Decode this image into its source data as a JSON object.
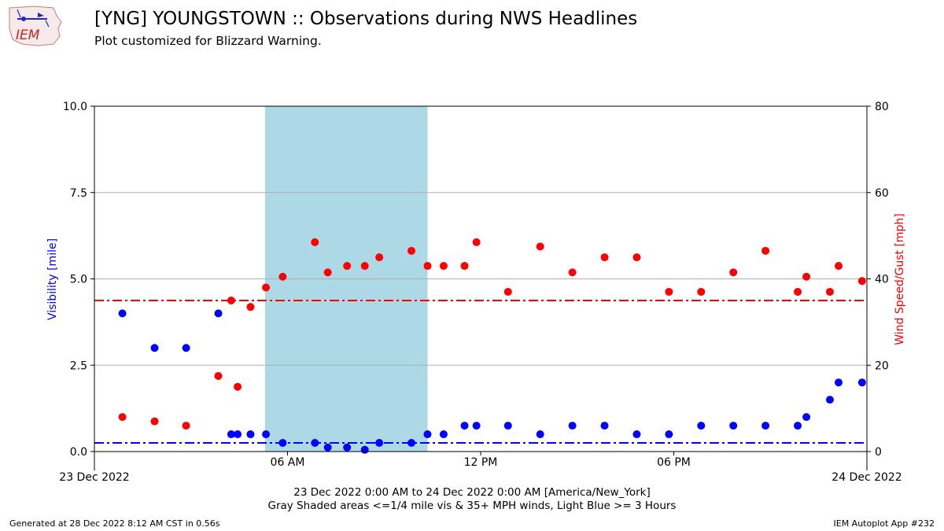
{
  "title": "[YNG] YOUNGSTOWN :: Observations during NWS Headlines",
  "subtitle": "Plot customized for Blizzard Warning.",
  "logo_text": "IEM",
  "xaxis_title_line1": "23 Dec 2022 0:00 AM to 24 Dec 2022 0:00 AM [America/New_York]",
  "xaxis_title_line2": "Gray Shaded areas <=1/4 mile vis & 35+ MPH winds, Light Blue >= 3 Hours",
  "footer_left": "Generated at 28 Dec 2022 8:12 AM CST in 0.56s",
  "footer_right": "IEM Autoplot App #232",
  "colors": {
    "visibility": "#0000ff",
    "wind": "#ff0000",
    "shade": "#add8e6",
    "grid": "#b0b0b0"
  },
  "chart_data": {
    "type": "scatter",
    "xlim": [
      0,
      24
    ],
    "x_ticks": [
      {
        "x": 0,
        "label": "23 Dec 2022"
      },
      {
        "x": 6,
        "label": "06 AM"
      },
      {
        "x": 12,
        "label": "12 PM"
      },
      {
        "x": 18,
        "label": "06 PM"
      },
      {
        "x": 24,
        "label": "24 Dec 2022"
      }
    ],
    "y_left": {
      "label": "Visibility [mile]",
      "lim": [
        0,
        10
      ],
      "ticks": [
        "0.0",
        "2.5",
        "5.0",
        "7.5",
        "10.0"
      ],
      "tick_values": [
        0,
        2.5,
        5,
        7.5,
        10
      ]
    },
    "y_right": {
      "label": "Wind Speed/Gust [mph]",
      "lim": [
        0,
        80
      ],
      "ticks": [
        "0",
        "20",
        "40",
        "60",
        "80"
      ],
      "tick_values": [
        0,
        20,
        40,
        60,
        80
      ]
    },
    "grid": true,
    "shaded_range_hours": [
      5.3,
      10.35
    ],
    "visibility_threshold": 0.25,
    "wind_threshold": 35,
    "series": [
      {
        "axis": "left",
        "points": [
          [
            0.87,
            4.0
          ],
          [
            1.87,
            3.0
          ],
          [
            2.85,
            3.0
          ],
          [
            3.85,
            4.0
          ],
          [
            4.25,
            0.5
          ],
          [
            4.45,
            0.5
          ],
          [
            4.85,
            0.5
          ],
          [
            5.33,
            0.5
          ],
          [
            5.85,
            0.25
          ],
          [
            6.85,
            0.25
          ],
          [
            7.25,
            0.12
          ],
          [
            7.85,
            0.12
          ],
          [
            8.4,
            0.05
          ],
          [
            8.85,
            0.25
          ],
          [
            9.85,
            0.25
          ],
          [
            10.35,
            0.5
          ],
          [
            10.85,
            0.5
          ],
          [
            11.5,
            0.75
          ],
          [
            11.87,
            0.75
          ],
          [
            12.85,
            0.75
          ],
          [
            13.85,
            0.5
          ],
          [
            14.85,
            0.75
          ],
          [
            15.85,
            0.75
          ],
          [
            16.85,
            0.5
          ],
          [
            17.85,
            0.5
          ],
          [
            18.85,
            0.75
          ],
          [
            19.85,
            0.75
          ],
          [
            20.85,
            0.75
          ],
          [
            21.85,
            0.75
          ],
          [
            22.12,
            1.0
          ],
          [
            22.85,
            1.5
          ],
          [
            23.12,
            2.0
          ],
          [
            23.85,
            2.0
          ]
        ]
      },
      {
        "axis": "right",
        "points": [
          [
            0.87,
            8
          ],
          [
            1.87,
            7
          ],
          [
            2.85,
            6
          ],
          [
            3.85,
            17.5
          ],
          [
            4.25,
            35
          ],
          [
            4.45,
            15
          ],
          [
            4.85,
            33.5
          ],
          [
            5.33,
            38
          ],
          [
            5.85,
            40.5
          ],
          [
            6.85,
            48.5
          ],
          [
            7.25,
            41.5
          ],
          [
            7.85,
            43
          ],
          [
            8.4,
            43
          ],
          [
            8.85,
            45
          ],
          [
            9.85,
            46.5
          ],
          [
            10.35,
            43
          ],
          [
            10.85,
            43
          ],
          [
            11.5,
            43
          ],
          [
            11.87,
            48.5
          ],
          [
            12.85,
            37
          ],
          [
            13.85,
            47.5
          ],
          [
            14.85,
            41.5
          ],
          [
            15.85,
            45
          ],
          [
            16.85,
            45
          ],
          [
            17.85,
            37
          ],
          [
            18.85,
            37
          ],
          [
            19.85,
            41.5
          ],
          [
            20.85,
            46.5
          ],
          [
            21.85,
            37
          ],
          [
            22.12,
            40.5
          ],
          [
            22.85,
            37
          ],
          [
            23.12,
            43
          ],
          [
            23.85,
            39.5
          ]
        ]
      }
    ]
  }
}
